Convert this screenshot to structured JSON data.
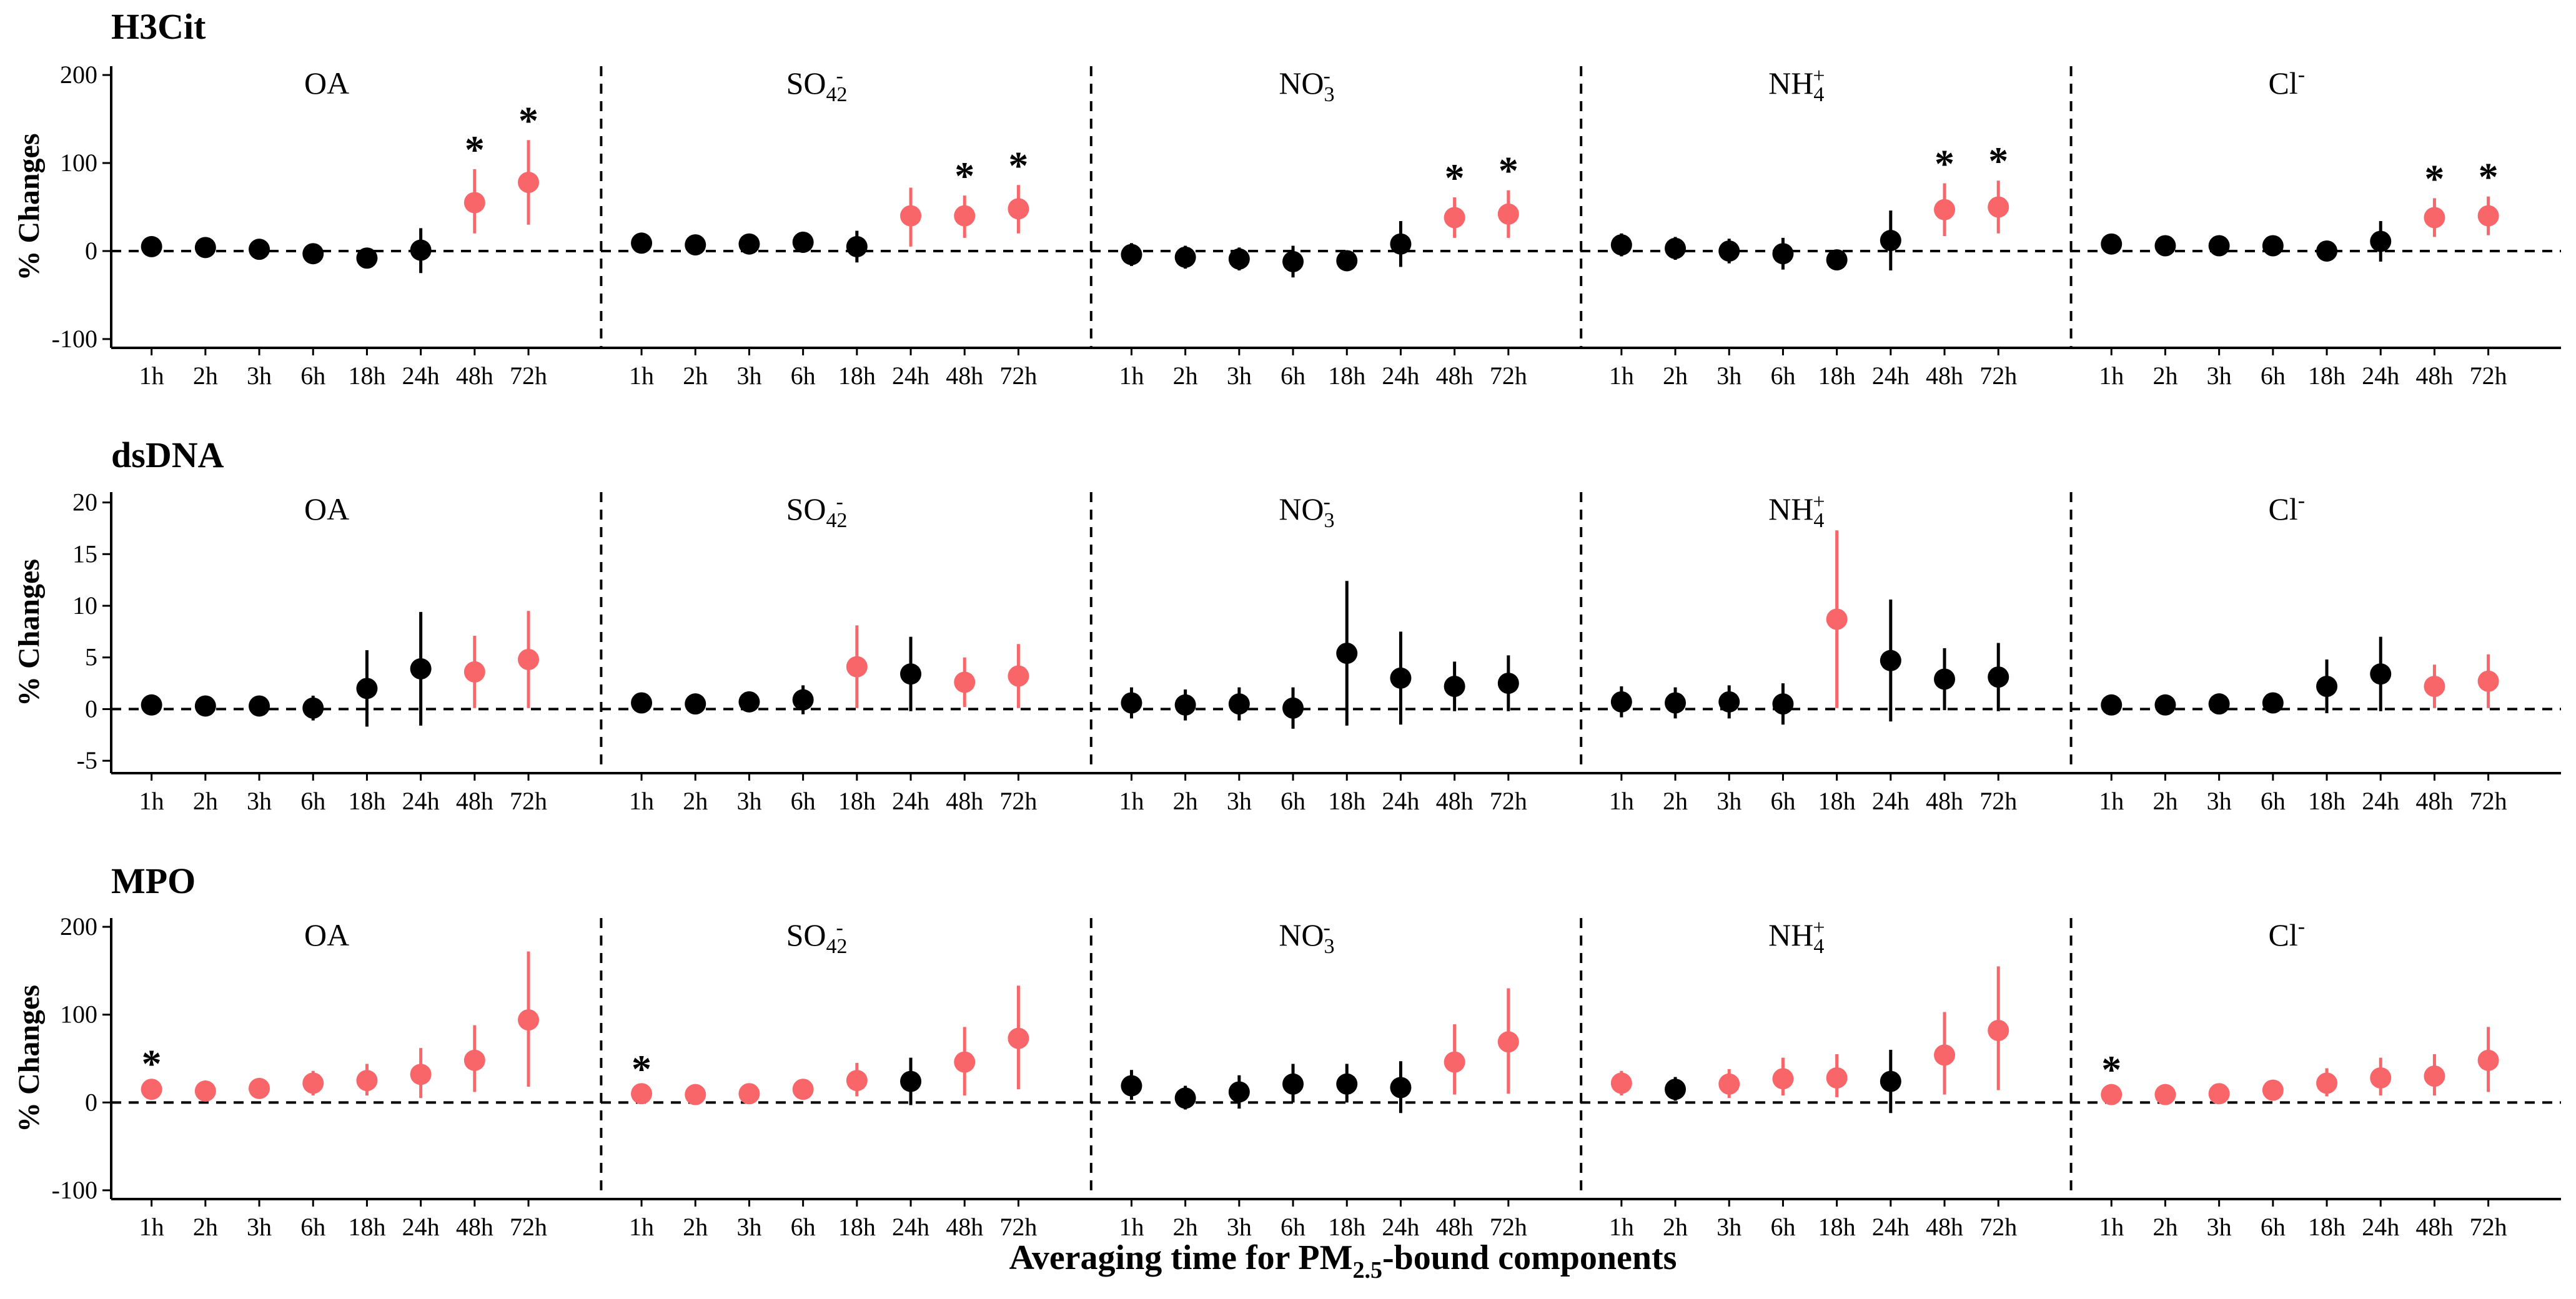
{
  "figure": {
    "x_axis_label": "Averaging time for PM2.5-bound components",
    "y_axis_label": "% Changes",
    "significance_marker": "*",
    "colors": {
      "significant": "#f8666a",
      "nonsignificant": "#000000"
    }
  },
  "chart_data": [
    {
      "type": "scatter",
      "title": "H3Cit",
      "ylabel": "% Changes",
      "ylim": [
        -110,
        210
      ],
      "yticks": [
        -100,
        0,
        100,
        200
      ],
      "components": [
        "OA",
        "SO42-",
        "NO3-",
        "NH4+",
        "Cl-"
      ],
      "categories": [
        "1h",
        "2h",
        "3h",
        "6h",
        "18h",
        "24h",
        "48h",
        "72h"
      ],
      "series": [
        {
          "est": [
            5,
            4,
            2,
            -3,
            -8,
            1,
            55,
            78
          ],
          "low": [
            0,
            0,
            -3,
            -12,
            -19,
            -25,
            20,
            30
          ],
          "high": [
            10,
            8,
            7,
            5,
            2,
            26,
            93,
            126
          ],
          "sig": [
            0,
            0,
            0,
            0,
            0,
            0,
            1,
            1
          ],
          "star": [
            0,
            0,
            0,
            0,
            0,
            0,
            1,
            1
          ]
        },
        {
          "est": [
            9,
            7,
            8,
            10,
            5,
            40,
            40,
            48
          ],
          "low": [
            4,
            2,
            3,
            -2,
            -13,
            5,
            15,
            20
          ],
          "high": [
            14,
            12,
            13,
            22,
            23,
            72,
            63,
            75
          ],
          "sig": [
            0,
            0,
            0,
            0,
            0,
            1,
            1,
            1
          ],
          "star": [
            0,
            0,
            0,
            0,
            0,
            0,
            1,
            1
          ]
        },
        {
          "est": [
            -4,
            -7,
            -9,
            -12,
            -11,
            8,
            38,
            42
          ],
          "low": [
            -17,
            -20,
            -22,
            -30,
            -20,
            -18,
            15,
            15
          ],
          "high": [
            9,
            6,
            4,
            6,
            -2,
            34,
            61,
            69
          ],
          "sig": [
            0,
            0,
            0,
            0,
            0,
            0,
            1,
            1
          ],
          "star": [
            0,
            0,
            0,
            0,
            0,
            0,
            1,
            1
          ]
        },
        {
          "est": [
            7,
            3,
            0,
            -3,
            -10,
            12,
            47,
            50
          ],
          "low": [
            -6,
            -10,
            -14,
            -21,
            -20,
            -22,
            17,
            20
          ],
          "high": [
            20,
            16,
            14,
            15,
            0,
            46,
            77,
            80
          ],
          "sig": [
            0,
            0,
            0,
            0,
            0,
            0,
            1,
            1
          ],
          "star": [
            0,
            0,
            0,
            0,
            0,
            0,
            1,
            1
          ]
        },
        {
          "est": [
            8,
            6,
            6,
            6,
            0,
            11,
            38,
            40
          ],
          "low": [
            3,
            1,
            1,
            -2,
            -9,
            -12,
            16,
            18
          ],
          "high": [
            13,
            11,
            11,
            14,
            9,
            34,
            60,
            62
          ],
          "sig": [
            0,
            0,
            0,
            0,
            0,
            0,
            1,
            1
          ],
          "star": [
            0,
            0,
            0,
            0,
            0,
            0,
            1,
            1
          ]
        }
      ]
    },
    {
      "type": "scatter",
      "title": "dsDNA",
      "ylabel": "% Changes",
      "ylim": [
        -6.2,
        21
      ],
      "yticks": [
        -5,
        0,
        5,
        10,
        15,
        20
      ],
      "components": [
        "OA",
        "SO42-",
        "NO3-",
        "NH4+",
        "Cl-"
      ],
      "categories": [
        "1h",
        "2h",
        "3h",
        "6h",
        "18h",
        "24h",
        "48h",
        "72h"
      ],
      "series": [
        {
          "est": [
            0.4,
            0.3,
            0.3,
            0.1,
            2.0,
            3.9,
            3.6,
            4.8
          ],
          "low": [
            -0.3,
            -0.4,
            -0.4,
            -1.1,
            -1.7,
            -1.6,
            0.1,
            0.1
          ],
          "high": [
            1.1,
            1.0,
            1.0,
            1.3,
            5.7,
            9.4,
            7.1,
            9.5
          ],
          "sig": [
            0,
            0,
            0,
            0,
            0,
            0,
            1,
            1
          ],
          "star": [
            0,
            0,
            0,
            0,
            0,
            0,
            0,
            0
          ]
        },
        {
          "est": [
            0.6,
            0.5,
            0.7,
            0.9,
            4.1,
            3.4,
            2.6,
            3.2
          ],
          "low": [
            -0.1,
            -0.2,
            -0.3,
            -0.5,
            0.1,
            -0.2,
            0.2,
            0.1
          ],
          "high": [
            1.3,
            1.2,
            1.7,
            2.3,
            8.1,
            7.0,
            5.0,
            6.3
          ],
          "sig": [
            0,
            0,
            0,
            0,
            1,
            0,
            1,
            1
          ],
          "star": [
            0,
            0,
            0,
            0,
            0,
            0,
            0,
            0
          ]
        },
        {
          "est": [
            0.6,
            0.4,
            0.5,
            0.1,
            5.4,
            3.0,
            2.2,
            2.5
          ],
          "low": [
            -0.9,
            -1.1,
            -1.1,
            -1.9,
            -1.6,
            -1.5,
            -0.2,
            -0.2
          ],
          "high": [
            2.1,
            1.9,
            2.1,
            2.1,
            12.4,
            7.5,
            4.6,
            5.2
          ],
          "sig": [
            0,
            0,
            0,
            0,
            0,
            0,
            0,
            0
          ],
          "star": [
            0,
            0,
            0,
            0,
            0,
            0,
            0,
            0
          ]
        },
        {
          "est": [
            0.7,
            0.6,
            0.7,
            0.5,
            8.7,
            4.7,
            2.9,
            3.1
          ],
          "low": [
            -0.8,
            -0.9,
            -0.9,
            -1.5,
            0.1,
            -1.2,
            -0.1,
            -0.2
          ],
          "high": [
            2.2,
            2.1,
            2.3,
            2.5,
            17.3,
            10.6,
            5.9,
            6.4
          ],
          "sig": [
            0,
            0,
            0,
            0,
            1,
            0,
            0,
            0
          ],
          "star": [
            0,
            0,
            0,
            0,
            0,
            0,
            0,
            0
          ]
        },
        {
          "est": [
            0.4,
            0.4,
            0.5,
            0.6,
            2.2,
            3.4,
            2.2,
            2.7
          ],
          "low": [
            -0.2,
            -0.2,
            -0.2,
            -0.4,
            -0.4,
            -0.2,
            0.1,
            0.1
          ],
          "high": [
            1.0,
            1.0,
            1.2,
            1.6,
            4.8,
            7.0,
            4.3,
            5.3
          ],
          "sig": [
            0,
            0,
            0,
            0,
            0,
            0,
            1,
            1
          ],
          "star": [
            0,
            0,
            0,
            0,
            0,
            0,
            0,
            0
          ]
        }
      ]
    },
    {
      "type": "scatter",
      "title": "MPO",
      "ylabel": "% Changes",
      "ylim": [
        -110,
        210
      ],
      "yticks": [
        -100,
        0,
        100,
        200
      ],
      "components": [
        "OA",
        "SO42-",
        "NO3-",
        "NH4+",
        "Cl-"
      ],
      "categories": [
        "1h",
        "2h",
        "3h",
        "6h",
        "18h",
        "24h",
        "48h",
        "72h"
      ],
      "series": [
        {
          "est": [
            15,
            13,
            16,
            22,
            25,
            32,
            48,
            94
          ],
          "low": [
            8,
            6,
            8,
            8,
            8,
            5,
            12,
            18
          ],
          "high": [
            22,
            20,
            24,
            36,
            44,
            62,
            88,
            172
          ],
          "sig": [
            1,
            1,
            1,
            1,
            1,
            1,
            1,
            1
          ],
          "star": [
            1,
            0,
            0,
            0,
            0,
            0,
            0,
            0
          ]
        },
        {
          "est": [
            10,
            9,
            10,
            15,
            25,
            24,
            46,
            73
          ],
          "low": [
            4,
            4,
            4,
            6,
            7,
            -3,
            8,
            15
          ],
          "high": [
            16,
            14,
            16,
            24,
            45,
            51,
            86,
            133
          ],
          "sig": [
            1,
            1,
            1,
            1,
            1,
            0,
            1,
            1
          ],
          "star": [
            1,
            0,
            0,
            0,
            0,
            0,
            0,
            0
          ]
        },
        {
          "est": [
            19,
            5,
            12,
            21,
            21,
            17,
            46,
            69
          ],
          "low": [
            3,
            -8,
            -7,
            0,
            0,
            -12,
            9,
            10
          ],
          "high": [
            37,
            19,
            31,
            44,
            44,
            47,
            89,
            130
          ],
          "sig": [
            0,
            0,
            0,
            0,
            0,
            0,
            1,
            1
          ],
          "star": [
            0,
            0,
            0,
            0,
            0,
            0,
            0,
            0
          ]
        },
        {
          "est": [
            22,
            15,
            21,
            27,
            28,
            24,
            54,
            82
          ],
          "low": [
            8,
            2,
            5,
            8,
            6,
            -12,
            9,
            14
          ],
          "high": [
            36,
            29,
            38,
            51,
            55,
            60,
            103,
            155
          ],
          "sig": [
            1,
            0,
            1,
            1,
            1,
            0,
            1,
            1
          ],
          "star": [
            0,
            0,
            0,
            0,
            0,
            0,
            0,
            0
          ]
        },
        {
          "est": [
            9,
            9,
            10,
            14,
            22,
            28,
            30,
            48
          ],
          "low": [
            3,
            3,
            4,
            5,
            7,
            8,
            8,
            12
          ],
          "high": [
            15,
            15,
            17,
            24,
            39,
            51,
            55,
            86
          ],
          "sig": [
            1,
            1,
            1,
            1,
            1,
            1,
            1,
            1
          ],
          "star": [
            1,
            0,
            0,
            0,
            0,
            0,
            0,
            0
          ]
        }
      ]
    }
  ]
}
